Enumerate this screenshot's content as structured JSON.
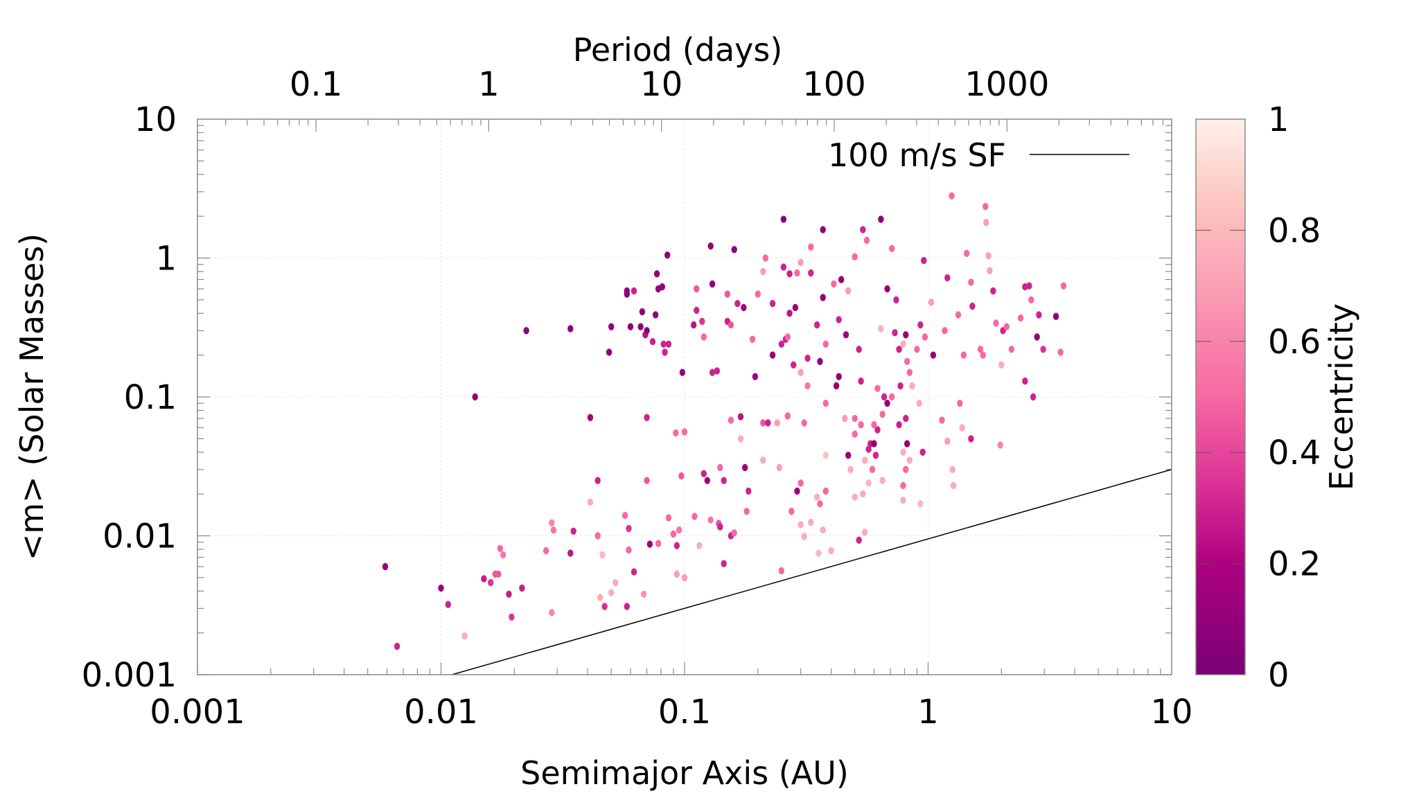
{
  "chart_data": {
    "type": "scatter",
    "xlabel": "Semimajor Axis (AU)",
    "ylabel": "<m> (Solar Masses)",
    "x2label": "Period (days)",
    "colorbar_label": "Eccentricity",
    "xscale": "log",
    "yscale": "log",
    "x2scale": "log",
    "xlim": [
      0.001,
      10
    ],
    "ylim": [
      0.001,
      10
    ],
    "x2lim": [
      0.0206,
      8980
    ],
    "xticks": [
      {
        "v": 0.001,
        "label": "0.001"
      },
      {
        "v": 0.01,
        "label": "0.01"
      },
      {
        "v": 0.1,
        "label": "0.1"
      },
      {
        "v": 1,
        "label": "1"
      },
      {
        "v": 10,
        "label": "10"
      }
    ],
    "yticks": [
      {
        "v": 0.001,
        "label": "0.001"
      },
      {
        "v": 0.01,
        "label": "0.01"
      },
      {
        "v": 0.1,
        "label": "0.1"
      },
      {
        "v": 1,
        "label": "1"
      },
      {
        "v": 10,
        "label": "10"
      }
    ],
    "x2ticks": [
      {
        "v": 0.1,
        "label": "0.1"
      },
      {
        "v": 1,
        "label": "1"
      },
      {
        "v": 10,
        "label": "10"
      },
      {
        "v": 100,
        "label": "100"
      },
      {
        "v": 1000,
        "label": "1000"
      }
    ],
    "colorbar": {
      "range": [
        0,
        1
      ],
      "ticks": [
        {
          "v": 0,
          "label": "0"
        },
        {
          "v": 0.2,
          "label": "0.2"
        },
        {
          "v": 0.4,
          "label": "0.4"
        },
        {
          "v": 0.6,
          "label": "0.6"
        },
        {
          "v": 0.8,
          "label": "0.8"
        },
        {
          "v": 1,
          "label": "1"
        }
      ],
      "colors": [
        [
          0,
          "#7a0177"
        ],
        [
          0.2,
          "#ae017e"
        ],
        [
          0.35,
          "#dd3497"
        ],
        [
          0.5,
          "#f768a1"
        ],
        [
          0.7,
          "#fa9fb5"
        ],
        [
          0.85,
          "#fcc5c0"
        ],
        [
          1,
          "#fff0eb"
        ]
      ]
    },
    "grid": true,
    "legend": {
      "position": "top-right",
      "entries": [
        {
          "label": "100 m/s SF",
          "color": "#000000"
        }
      ]
    },
    "sf_line": {
      "name": "100 m/s SF",
      "m_at_1AU": 0.0095,
      "power": 0.5
    },
    "points_columns": [
      "a_AU",
      "m_solar",
      "eccentricity"
    ],
    "points": [
      [
        0.0059,
        0.006,
        0.12
      ],
      [
        0.0066,
        0.0016,
        0.3
      ],
      [
        0.01,
        0.0042,
        0.12
      ],
      [
        0.0107,
        0.0032,
        0.3
      ],
      [
        0.0125,
        0.0019,
        0.75
      ],
      [
        0.0138,
        0.1,
        0.08
      ],
      [
        0.015,
        0.0049,
        0.28
      ],
      [
        0.016,
        0.0046,
        0.35
      ],
      [
        0.0167,
        0.0053,
        0.45
      ],
      [
        0.0172,
        0.0053,
        0.45
      ],
      [
        0.0175,
        0.0081,
        0.5
      ],
      [
        0.018,
        0.0073,
        0.55
      ],
      [
        0.019,
        0.0038,
        0.28
      ],
      [
        0.0195,
        0.0026,
        0.35
      ],
      [
        0.0215,
        0.0042,
        0.28
      ],
      [
        0.0224,
        0.3,
        0.08
      ],
      [
        0.0285,
        0.0028,
        0.6
      ],
      [
        0.0285,
        0.0124,
        0.6
      ],
      [
        0.029,
        0.011,
        0.55
      ],
      [
        0.027,
        0.0078,
        0.5
      ],
      [
        0.034,
        0.31,
        0.08
      ],
      [
        0.034,
        0.0075,
        0.25
      ],
      [
        0.035,
        0.0108,
        0.3
      ],
      [
        0.041,
        0.071,
        0.18
      ],
      [
        0.041,
        0.0175,
        0.75
      ],
      [
        0.044,
        0.025,
        0.3
      ],
      [
        0.044,
        0.01,
        0.5
      ],
      [
        0.045,
        0.0036,
        0.75
      ],
      [
        0.046,
        0.0073,
        0.8
      ],
      [
        0.047,
        0.0031,
        0.33
      ],
      [
        0.049,
        0.21,
        0.08
      ],
      [
        0.05,
        0.0039,
        0.75
      ],
      [
        0.05,
        0.32,
        0.08
      ],
      [
        0.052,
        0.0046,
        0.75
      ],
      [
        0.057,
        0.014,
        0.5
      ],
      [
        0.058,
        0.58,
        0.08
      ],
      [
        0.058,
        0.55,
        0.08
      ],
      [
        0.059,
        0.0113,
        0.35
      ],
      [
        0.059,
        0.0079,
        0.5
      ],
      [
        0.058,
        0.0031,
        0.3
      ],
      [
        0.062,
        0.58,
        0.3
      ],
      [
        0.062,
        0.0055,
        0.3
      ],
      [
        0.06,
        0.32,
        0.08
      ],
      [
        0.066,
        0.32,
        0.08
      ],
      [
        0.067,
        0.41,
        0.1
      ],
      [
        0.068,
        0.0038,
        0.65
      ],
      [
        0.069,
        0.28,
        0.25
      ],
      [
        0.07,
        0.071,
        0.3
      ],
      [
        0.07,
        0.025,
        0.45
      ],
      [
        0.07,
        0.3,
        0.08
      ],
      [
        0.072,
        0.0087,
        0.15
      ],
      [
        0.074,
        0.25,
        0.3
      ],
      [
        0.076,
        0.39,
        0.08
      ],
      [
        0.077,
        0.77,
        0.1
      ],
      [
        0.078,
        0.0088,
        0.5
      ],
      [
        0.078,
        0.6,
        0.08
      ],
      [
        0.081,
        0.62,
        0.15
      ],
      [
        0.082,
        0.24,
        0.3
      ],
      [
        0.083,
        0.21,
        0.3
      ],
      [
        0.085,
        1.05,
        0.08
      ],
      [
        0.086,
        0.24,
        0.3
      ],
      [
        0.086,
        0.0135,
        0.5
      ],
      [
        0.09,
        0.0103,
        0.5
      ],
      [
        0.093,
        0.0053,
        0.7
      ],
      [
        0.093,
        0.0085,
        0.3
      ],
      [
        0.092,
        0.055,
        0.5
      ],
      [
        0.095,
        0.011,
        0.55
      ],
      [
        0.098,
        0.15,
        0.1
      ],
      [
        0.097,
        0.027,
        0.45
      ],
      [
        0.1,
        0.005,
        0.7
      ],
      [
        0.1,
        0.056,
        0.5
      ],
      [
        0.11,
        0.0138,
        0.5
      ],
      [
        0.112,
        0.42,
        0.3
      ],
      [
        0.109,
        0.33,
        0.25
      ],
      [
        0.115,
        0.0085,
        0.75
      ],
      [
        0.118,
        0.35,
        0.35
      ],
      [
        0.112,
        0.6,
        0.45
      ],
      [
        0.12,
        0.27,
        0.5
      ],
      [
        0.12,
        0.028,
        0.3
      ],
      [
        0.124,
        0.025,
        0.15
      ],
      [
        0.128,
        1.22,
        0.08
      ],
      [
        0.128,
        0.013,
        0.55
      ],
      [
        0.13,
        0.65,
        0.1
      ],
      [
        0.13,
        0.15,
        0.3
      ],
      [
        0.136,
        0.154,
        0.3
      ],
      [
        0.138,
        0.0123,
        0.45
      ],
      [
        0.14,
        0.0116,
        0.3
      ],
      [
        0.14,
        0.031,
        0.5
      ],
      [
        0.145,
        0.0063,
        0.3
      ],
      [
        0.145,
        0.025,
        0.3
      ],
      [
        0.15,
        0.55,
        0.45
      ],
      [
        0.15,
        0.35,
        0.3
      ],
      [
        0.155,
        0.068,
        0.5
      ],
      [
        0.155,
        0.01,
        0.3
      ],
      [
        0.16,
        0.0105,
        0.5
      ],
      [
        0.16,
        1.15,
        0.08
      ],
      [
        0.155,
        0.33,
        0.45
      ],
      [
        0.165,
        0.47,
        0.3
      ],
      [
        0.17,
        0.072,
        0.25
      ],
      [
        0.17,
        0.05,
        0.75
      ],
      [
        0.175,
        0.44,
        0.15
      ],
      [
        0.177,
        0.031,
        0.15
      ],
      [
        0.18,
        0.015,
        0.5
      ],
      [
        0.183,
        0.021,
        0.3
      ],
      [
        0.19,
        0.26,
        0.5
      ],
      [
        0.195,
        0.14,
        0.15
      ],
      [
        0.2,
        0.55,
        0.5
      ],
      [
        0.21,
        0.035,
        0.75
      ],
      [
        0.21,
        0.065,
        0.45
      ],
      [
        0.21,
        0.8,
        0.7
      ],
      [
        0.215,
        1.0,
        0.5
      ],
      [
        0.22,
        0.065,
        0.3
      ],
      [
        0.23,
        0.2,
        0.15
      ],
      [
        0.24,
        0.065,
        0.7
      ],
      [
        0.23,
        0.47,
        0.3
      ],
      [
        0.245,
        0.031,
        0.7
      ],
      [
        0.25,
        0.24,
        0.3
      ],
      [
        0.255,
        0.86,
        0.3
      ],
      [
        0.26,
        0.26,
        0.3
      ],
      [
        0.265,
        0.073,
        0.5
      ],
      [
        0.255,
        1.9,
        0.08
      ],
      [
        0.27,
        0.4,
        0.25
      ],
      [
        0.265,
        0.27,
        0.5
      ],
      [
        0.27,
        0.77,
        0.3
      ],
      [
        0.275,
        0.015,
        0.5
      ],
      [
        0.28,
        0.17,
        0.3
      ],
      [
        0.285,
        0.44,
        0.15
      ],
      [
        0.29,
        0.78,
        0.5
      ],
      [
        0.29,
        0.021,
        0.15
      ],
      [
        0.3,
        0.93,
        0.7
      ],
      [
        0.3,
        0.024,
        0.5
      ],
      [
        0.3,
        0.15,
        0.7
      ],
      [
        0.31,
        0.0099,
        0.75
      ],
      [
        0.31,
        0.065,
        0.5
      ],
      [
        0.32,
        0.19,
        0.3
      ],
      [
        0.32,
        0.12,
        0.55
      ],
      [
        0.33,
        1.2,
        0.5
      ],
      [
        0.33,
        0.78,
        0.3
      ],
      [
        0.33,
        0.0125,
        0.75
      ],
      [
        0.35,
        0.33,
        0.3
      ],
      [
        0.355,
        0.0075,
        0.8
      ],
      [
        0.36,
        0.18,
        0.1
      ],
      [
        0.37,
        1.6,
        0.08
      ],
      [
        0.37,
        0.52,
        0.1
      ],
      [
        0.38,
        0.021,
        0.75
      ],
      [
        0.38,
        0.038,
        0.85
      ],
      [
        0.38,
        0.09,
        0.5
      ],
      [
        0.38,
        0.24,
        0.5
      ],
      [
        0.4,
        0.0078,
        0.75
      ],
      [
        0.41,
        0.65,
        0.5
      ],
      [
        0.42,
        0.12,
        0.1
      ],
      [
        0.43,
        0.14,
        0.1
      ],
      [
        0.43,
        0.36,
        0.3
      ],
      [
        0.44,
        0.7,
        0.1
      ],
      [
        0.455,
        0.07,
        0.7
      ],
      [
        0.46,
        0.28,
        0.15
      ],
      [
        0.47,
        0.58,
        0.7
      ],
      [
        0.47,
        0.038,
        0.1
      ],
      [
        0.5,
        1.02,
        0.5
      ],
      [
        0.5,
        0.07,
        0.5
      ],
      [
        0.52,
        0.22,
        0.3
      ],
      [
        0.53,
        0.13,
        0.3
      ],
      [
        0.54,
        1.6,
        0.3
      ],
      [
        0.54,
        0.02,
        0.75
      ],
      [
        0.55,
        0.0106,
        0.75
      ],
      [
        0.56,
        1.34,
        0.5
      ],
      [
        0.58,
        0.046,
        0.3
      ],
      [
        0.6,
        0.046,
        0.1
      ],
      [
        0.61,
        0.038,
        0.3
      ],
      [
        0.62,
        0.115,
        0.5
      ],
      [
        0.64,
        1.9,
        0.08
      ],
      [
        0.64,
        0.31,
        0.75
      ],
      [
        0.66,
        0.1,
        0.3
      ],
      [
        0.68,
        0.6,
        0.1
      ],
      [
        0.71,
        1.17,
        0.5
      ],
      [
        0.74,
        0.5,
        0.3
      ],
      [
        0.73,
        0.29,
        0.3
      ],
      [
        0.76,
        0.22,
        0.3
      ],
      [
        0.79,
        0.24,
        0.75
      ],
      [
        0.81,
        0.28,
        0.12
      ],
      [
        0.82,
        0.18,
        0.5
      ],
      [
        0.84,
        0.15,
        0.5
      ],
      [
        0.86,
        0.12,
        0.75
      ],
      [
        0.9,
        0.22,
        0.5
      ],
      [
        0.93,
        0.33,
        0.3
      ],
      [
        0.96,
        0.96,
        0.3
      ],
      [
        0.97,
        0.27,
        0.5
      ],
      [
        1.03,
        0.48,
        0.7
      ],
      [
        1.05,
        0.2,
        0.1
      ],
      [
        1.17,
        0.3,
        0.5
      ],
      [
        1.2,
        0.72,
        0.3
      ],
      [
        1.25,
        2.8,
        0.5
      ],
      [
        1.33,
        0.39,
        0.5
      ],
      [
        1.4,
        0.2,
        0.5
      ],
      [
        1.44,
        1.08,
        0.5
      ],
      [
        1.5,
        0.67,
        0.5
      ],
      [
        1.52,
        0.45,
        0.3
      ],
      [
        1.64,
        0.22,
        0.5
      ],
      [
        1.68,
        0.2,
        0.5
      ],
      [
        1.72,
        2.35,
        0.5
      ],
      [
        1.73,
        1.8,
        0.7
      ],
      [
        1.77,
        1.04,
        0.7
      ],
      [
        1.79,
        0.81,
        0.7
      ],
      [
        1.85,
        0.58,
        0.3
      ],
      [
        1.9,
        0.34,
        0.5
      ],
      [
        2.0,
        0.17,
        0.75
      ],
      [
        2.03,
        0.3,
        0.3
      ],
      [
        2.1,
        0.32,
        0.5
      ],
      [
        2.2,
        0.22,
        0.5
      ],
      [
        2.4,
        0.37,
        0.5
      ],
      [
        2.5,
        0.62,
        0.3
      ],
      [
        2.6,
        0.63,
        0.3
      ],
      [
        2.65,
        0.5,
        0.5
      ],
      [
        2.85,
        0.39,
        0.3
      ],
      [
        2.97,
        0.22,
        0.35
      ],
      [
        2.7,
        0.1,
        0.3
      ],
      [
        2.5,
        0.13,
        0.3
      ],
      [
        3.35,
        0.38,
        0.1
      ],
      [
        3.5,
        0.21,
        0.5
      ],
      [
        3.6,
        0.63,
        0.5
      ],
      [
        2.8,
        0.27,
        0.1
      ],
      [
        0.92,
        0.09,
        0.75
      ],
      [
        0.95,
        0.04,
        0.3
      ],
      [
        1.14,
        0.068,
        0.5
      ],
      [
        1.2,
        0.048,
        0.7
      ],
      [
        1.26,
        0.03,
        0.75
      ],
      [
        1.27,
        0.023,
        0.75
      ],
      [
        1.35,
        0.09,
        0.5
      ],
      [
        1.38,
        0.06,
        0.75
      ],
      [
        1.5,
        0.05,
        0.3
      ],
      [
        1.98,
        0.045,
        0.6
      ],
      [
        0.81,
        0.07,
        0.3
      ],
      [
        0.76,
        0.063,
        0.3
      ],
      [
        0.82,
        0.046,
        0.1
      ],
      [
        0.79,
        0.04,
        0.75
      ],
      [
        0.81,
        0.03,
        0.5
      ],
      [
        0.84,
        0.035,
        0.75
      ],
      [
        0.71,
        0.1,
        0.5
      ],
      [
        0.77,
        0.12,
        0.3
      ],
      [
        0.68,
        0.09,
        0.1
      ],
      [
        0.65,
        0.075,
        0.5
      ],
      [
        0.62,
        0.058,
        0.3
      ],
      [
        0.6,
        0.063,
        0.5
      ],
      [
        0.57,
        0.042,
        0.3
      ],
      [
        0.53,
        0.063,
        0.5
      ],
      [
        0.5,
        0.054,
        0.5
      ],
      [
        0.48,
        0.03,
        0.75
      ],
      [
        0.55,
        0.035,
        0.75
      ],
      [
        0.59,
        0.03,
        0.5
      ],
      [
        0.79,
        0.023,
        0.5
      ],
      [
        0.93,
        0.017,
        0.8
      ],
      [
        0.79,
        0.018,
        0.75
      ],
      [
        0.65,
        0.025,
        0.75
      ],
      [
        0.35,
        0.019,
        0.75
      ],
      [
        0.36,
        0.017,
        0.5
      ],
      [
        0.3,
        0.012,
        0.75
      ],
      [
        0.37,
        0.011,
        0.75
      ],
      [
        0.38,
        0.021,
        0.5
      ],
      [
        0.57,
        0.024,
        0.8
      ],
      [
        0.5,
        0.019,
        0.75
      ],
      [
        0.52,
        0.0093,
        0.3
      ],
      [
        0.25,
        0.0056,
        0.5
      ]
    ]
  }
}
